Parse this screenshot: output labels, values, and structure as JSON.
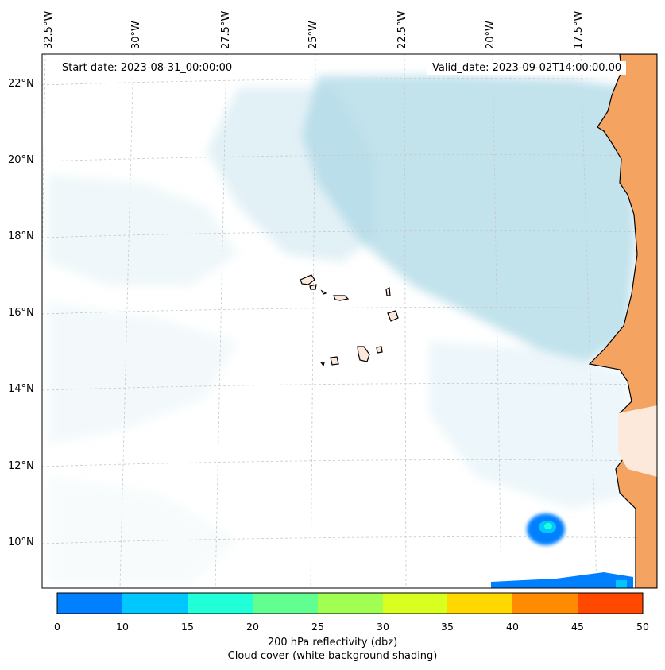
{
  "map": {
    "start_date": "Start date: 2023-08-31_00:00:00",
    "valid_date": "Valid_date: 2023-09-02T14:00:00.00",
    "lon_labels": [
      "32.5°W",
      "30°W",
      "27.5°W",
      "25°W",
      "22.5°W",
      "20°W",
      "17.5°W"
    ],
    "lat_labels": [
      "22°N",
      "20°N",
      "18°N",
      "16°N",
      "14°N",
      "12°N",
      "10°N"
    ]
  },
  "colorbar": {
    "ticks": [
      "0",
      "10",
      "15",
      "20",
      "25",
      "30",
      "35",
      "40",
      "45",
      "50"
    ],
    "colors": [
      "#0080ff",
      "#00c8ff",
      "#20ffd8",
      "#60ff90",
      "#a0ff50",
      "#d8ff20",
      "#ffd800",
      "#ff8c00",
      "#ff4800"
    ],
    "label_line1": "200 hPa reflectivity (dbz)",
    "label_line2": "Cloud cover (white background shading)"
  },
  "palette": {
    "cloud": "#add8e6",
    "land": "#f4a460",
    "reflectivity_low": "#0080ff",
    "reflectivity_mid": "#00c8ff",
    "reflectivity_high": "#20ffd8"
  }
}
